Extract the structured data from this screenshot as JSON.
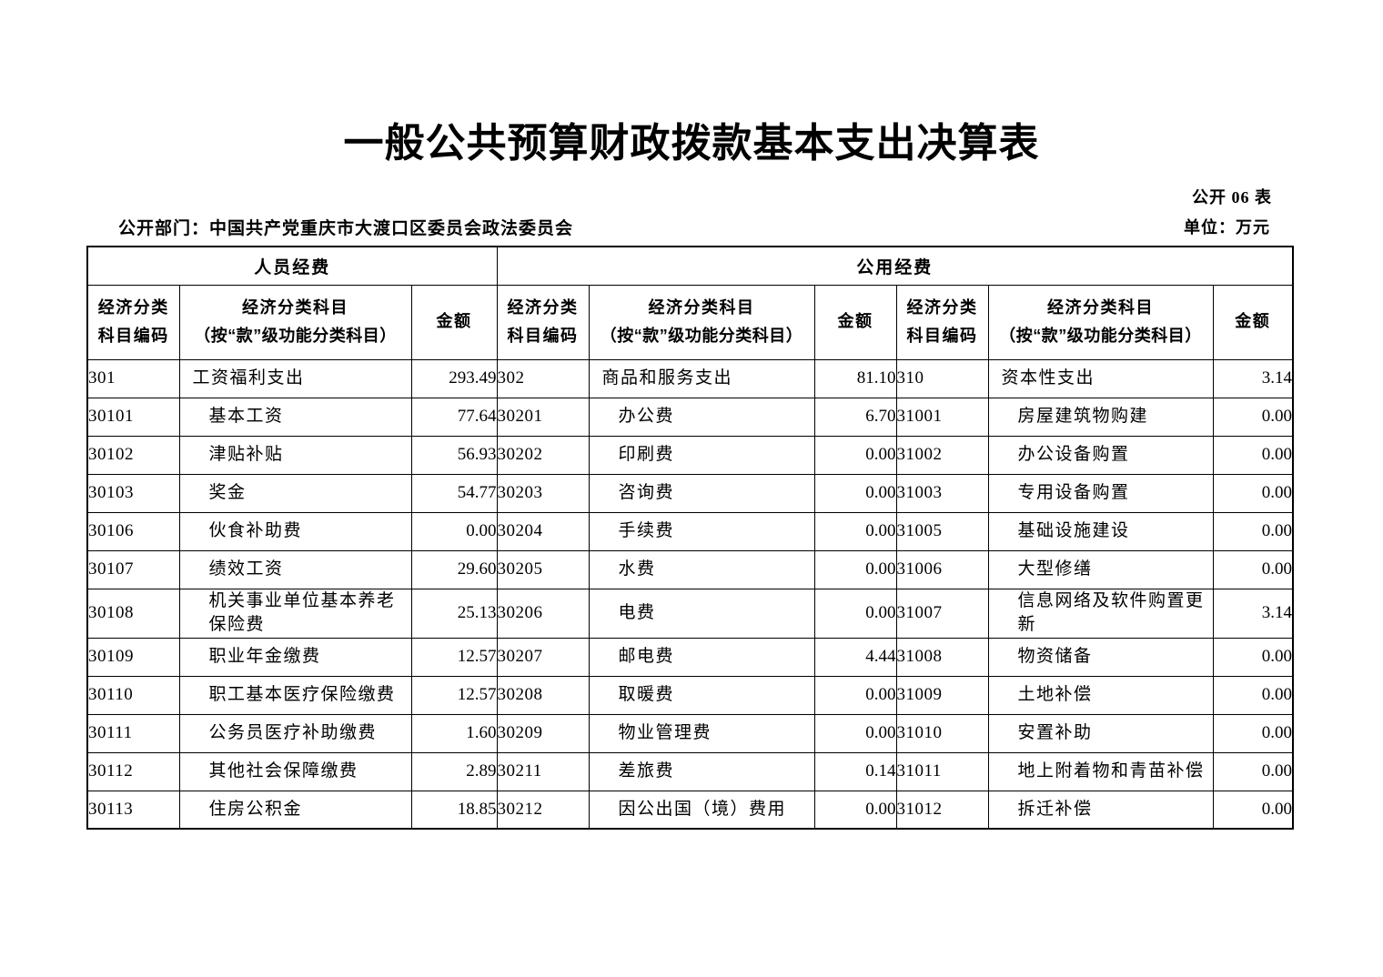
{
  "doc": {
    "title": "一般公共预算财政拨款基本支出决算表",
    "table_no": "公开 06 表",
    "department": "公开部门：中国共产党重庆市大渡口区委员会政法委员会",
    "unit": "单位：万元"
  },
  "table": {
    "groups": [
      {
        "label": "人员经费"
      },
      {
        "label": "公用经费"
      }
    ],
    "headers": {
      "code_line1": "经济分类",
      "code_line2": "科目编码",
      "subject_line1": "经济分类科目",
      "subject_line2": "（按“款”级功能分类科目）",
      "amount": "金额"
    },
    "rows": [
      [
        {
          "code": "301",
          "name": "工资福利支出",
          "amount": "293.49"
        },
        {
          "code": "302",
          "name": "商品和服务支出",
          "amount": "81.10"
        },
        {
          "code": "310",
          "name": "资本性支出",
          "amount": "3.14"
        }
      ],
      [
        {
          "code": "30101",
          "name": "基本工资",
          "amount": "77.64"
        },
        {
          "code": "30201",
          "name": "办公费",
          "amount": "6.70"
        },
        {
          "code": "31001",
          "name": "房屋建筑物购建",
          "amount": "0.00"
        }
      ],
      [
        {
          "code": "30102",
          "name": "津贴补贴",
          "amount": "56.93"
        },
        {
          "code": "30202",
          "name": "印刷费",
          "amount": "0.00"
        },
        {
          "code": "31002",
          "name": "办公设备购置",
          "amount": "0.00"
        }
      ],
      [
        {
          "code": "30103",
          "name": "奖金",
          "amount": "54.77"
        },
        {
          "code": "30203",
          "name": "咨询费",
          "amount": "0.00"
        },
        {
          "code": "31003",
          "name": "专用设备购置",
          "amount": "0.00"
        }
      ],
      [
        {
          "code": "30106",
          "name": "伙食补助费",
          "amount": "0.00"
        },
        {
          "code": "30204",
          "name": "手续费",
          "amount": "0.00"
        },
        {
          "code": "31005",
          "name": "基础设施建设",
          "amount": "0.00"
        }
      ],
      [
        {
          "code": "30107",
          "name": "绩效工资",
          "amount": "29.60"
        },
        {
          "code": "30205",
          "name": "水费",
          "amount": "0.00"
        },
        {
          "code": "31006",
          "name": "大型修缮",
          "amount": "0.00"
        }
      ],
      [
        {
          "code": "30108",
          "name": "机关事业单位基本养老保险费",
          "amount": "25.13"
        },
        {
          "code": "30206",
          "name": "电费",
          "amount": "0.00"
        },
        {
          "code": "31007",
          "name": "信息网络及软件购置更新",
          "amount": "3.14"
        }
      ],
      [
        {
          "code": "30109",
          "name": "职业年金缴费",
          "amount": "12.57"
        },
        {
          "code": "30207",
          "name": "邮电费",
          "amount": "4.44"
        },
        {
          "code": "31008",
          "name": "物资储备",
          "amount": "0.00"
        }
      ],
      [
        {
          "code": "30110",
          "name": "职工基本医疗保险缴费",
          "amount": "12.57"
        },
        {
          "code": "30208",
          "name": "取暖费",
          "amount": "0.00"
        },
        {
          "code": "31009",
          "name": "土地补偿",
          "amount": "0.00"
        }
      ],
      [
        {
          "code": "30111",
          "name": "公务员医疗补助缴费",
          "amount": "1.60"
        },
        {
          "code": "30209",
          "name": "物业管理费",
          "amount": "0.00"
        },
        {
          "code": "31010",
          "name": "安置补助",
          "amount": "0.00"
        }
      ],
      [
        {
          "code": "30112",
          "name": "其他社会保障缴费",
          "amount": "2.89"
        },
        {
          "code": "30211",
          "name": "差旅费",
          "amount": "0.14"
        },
        {
          "code": "31011",
          "name": "地上附着物和青苗补偿",
          "amount": "0.00"
        }
      ],
      [
        {
          "code": "30113",
          "name": "住房公积金",
          "amount": "18.85"
        },
        {
          "code": "30212",
          "name": "因公出国（境）费用",
          "amount": "0.00"
        },
        {
          "code": "31012",
          "name": "拆迁补偿",
          "amount": "0.00"
        }
      ]
    ]
  }
}
